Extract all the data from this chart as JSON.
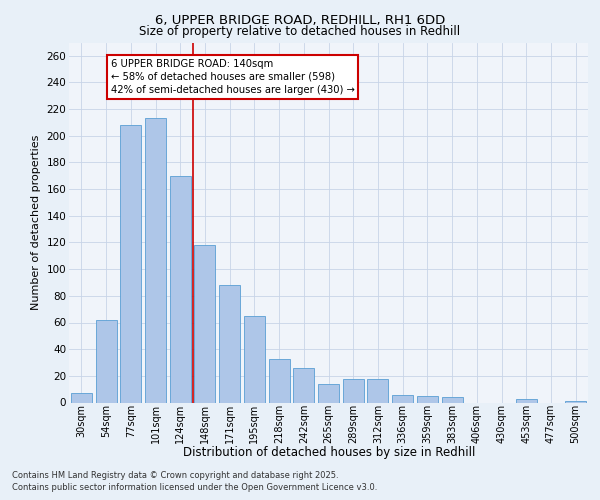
{
  "title_line1": "6, UPPER BRIDGE ROAD, REDHILL, RH1 6DD",
  "title_line2": "Size of property relative to detached houses in Redhill",
  "xlabel": "Distribution of detached houses by size in Redhill",
  "ylabel": "Number of detached properties",
  "categories": [
    "30sqm",
    "54sqm",
    "77sqm",
    "101sqm",
    "124sqm",
    "148sqm",
    "171sqm",
    "195sqm",
    "218sqm",
    "242sqm",
    "265sqm",
    "289sqm",
    "312sqm",
    "336sqm",
    "359sqm",
    "383sqm",
    "406sqm",
    "430sqm",
    "453sqm",
    "477sqm",
    "500sqm"
  ],
  "values": [
    7,
    62,
    208,
    213,
    170,
    118,
    88,
    65,
    33,
    26,
    14,
    18,
    18,
    6,
    5,
    4,
    0,
    0,
    3,
    0,
    1
  ],
  "bar_color": "#aec6e8",
  "bar_edge_color": "#5a9fd4",
  "vline_color": "#cc0000",
  "annotation_text": "6 UPPER BRIDGE ROAD: 140sqm\n← 58% of detached houses are smaller (598)\n42% of semi-detached houses are larger (430) →",
  "annotation_box_color": "#ffffff",
  "annotation_box_edge": "#cc0000",
  "ylim": [
    0,
    270
  ],
  "yticks": [
    0,
    20,
    40,
    60,
    80,
    100,
    120,
    140,
    160,
    180,
    200,
    220,
    240,
    260
  ],
  "footer_line1": "Contains HM Land Registry data © Crown copyright and database right 2025.",
  "footer_line2": "Contains public sector information licensed under the Open Government Licence v3.0.",
  "bg_color": "#e8f0f8",
  "plot_bg_color": "#f0f4fa",
  "grid_color": "#c8d4e8"
}
